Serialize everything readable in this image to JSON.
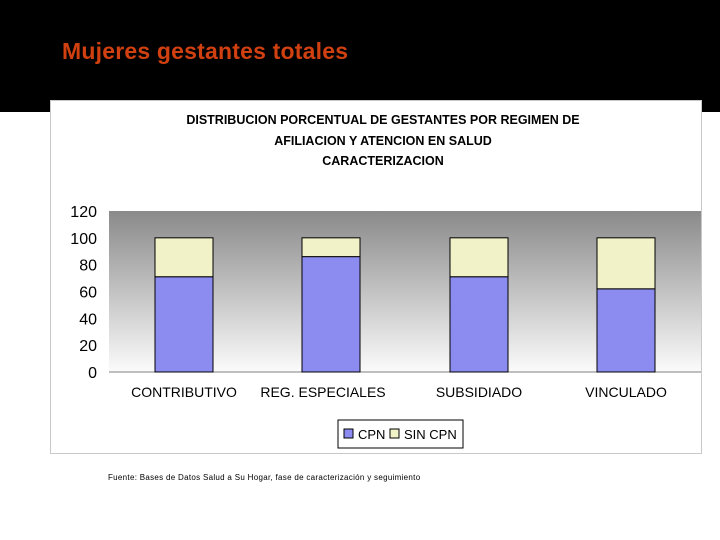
{
  "slide": {
    "title": "Mujeres gestantes totales",
    "source": "Fuente: Bases de Datos Salud a Su Hogar, fase de caracterización y seguimiento",
    "title_color": "#d04010",
    "header_color": "#000000"
  },
  "chart_data": {
    "type": "bar",
    "stacked": true,
    "title_lines": [
      "DISTRIBUCION PORCENTUAL DE GESTANTES POR REGIMEN DE",
      "AFILIACION Y ATENCION EN SALUD",
      "CARACTERIZACION"
    ],
    "categories": [
      "CONTRIBUTIVO",
      "REG. ESPECIALES",
      "SUBSIDIADO",
      "VINCULADO"
    ],
    "series": [
      {
        "name": "CPN",
        "values": [
          71,
          86,
          71,
          62
        ],
        "color": "#8c8cf0"
      },
      {
        "name": "SIN CPN",
        "values": [
          29,
          14,
          29,
          38
        ],
        "color": "#f2f2c8"
      }
    ],
    "ylim": [
      0,
      120
    ],
    "yticks": [
      "0",
      "20",
      "40",
      "60",
      "80",
      "100",
      "120"
    ],
    "grid": false,
    "legend_position": "bottom-center",
    "plot_background": "gradient gray"
  }
}
